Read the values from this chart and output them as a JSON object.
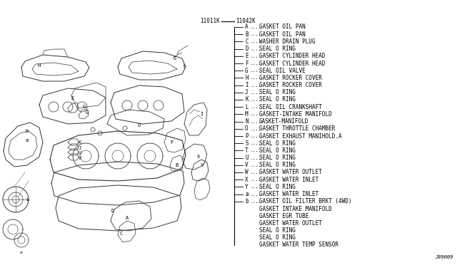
{
  "bg_color": "#ffffff",
  "items": [
    {
      "label": "A",
      "text": "GASKET OIL PAN",
      "has_tick": true
    },
    {
      "label": "B",
      "text": "GASKET OIL PAN",
      "has_tick": true
    },
    {
      "label": "C",
      "text": "WASHER DRAIN PLUG",
      "has_tick": true
    },
    {
      "label": "D",
      "text": "SEAL O RING",
      "has_tick": true
    },
    {
      "label": "E",
      "text": "GASKET CYLINDER HEAD",
      "has_tick": true
    },
    {
      "label": "F",
      "text": "GASKET CYLINDER HEAD",
      "has_tick": true
    },
    {
      "label": "G",
      "text": "SEAL OIL VALVE",
      "has_tick": true
    },
    {
      "label": "H",
      "text": "GASKET ROCKER COVER",
      "has_tick": true
    },
    {
      "label": "I",
      "text": "GASKET ROCKER COVER",
      "has_tick": true
    },
    {
      "label": "J",
      "text": "SEAL O RING",
      "has_tick": true
    },
    {
      "label": "K",
      "text": "SEAL O RING",
      "has_tick": true
    },
    {
      "label": "L",
      "text": "SEAL OIL CRANKSHAFT",
      "has_tick": true
    },
    {
      "label": "M",
      "text": "GASKET-INTAKE MANIFOLD",
      "has_tick": true
    },
    {
      "label": "N",
      "text": "GASKET-MANIFOLD",
      "has_tick": true
    },
    {
      "label": "O",
      "text": "GASKET THROTTLE CHAMBER",
      "has_tick": true
    },
    {
      "label": "P",
      "text": "GASKET EXHAUST MANIHOLD.A",
      "has_tick": true
    },
    {
      "label": "S",
      "text": "SEAL O RING",
      "has_tick": true
    },
    {
      "label": "T",
      "text": "SEAL O RING",
      "has_tick": true
    },
    {
      "label": "U",
      "text": "SEAL O RING",
      "has_tick": true
    },
    {
      "label": "V",
      "text": "SEAL O RING",
      "has_tick": true
    },
    {
      "label": "W",
      "text": "GASKET WATER OUTLET",
      "has_tick": true
    },
    {
      "label": "X",
      "text": "GASKET WATER INLET",
      "has_tick": true
    },
    {
      "label": "Y",
      "text": "SEAL O RING",
      "has_tick": true
    },
    {
      "label": "a",
      "text": "GASKET WATER INLET",
      "has_tick": true
    },
    {
      "label": "b",
      "text": "GASKET OIL FILTER BRKT (4WD)",
      "has_tick": true
    },
    {
      "label": "",
      "text": "GASKET INTAKE MANIFOLD",
      "has_tick": false
    },
    {
      "label": "",
      "text": "GASKET EGR TUBE",
      "has_tick": false
    },
    {
      "label": "",
      "text": "GASKET WATER OUTLET",
      "has_tick": false
    },
    {
      "label": "",
      "text": "SEAL O RING",
      "has_tick": false
    },
    {
      "label": "",
      "text": "SEAL O RING",
      "has_tick": false
    },
    {
      "label": "",
      "text": "GASKET WATER TEMP SENSOR",
      "has_tick": false
    }
  ],
  "footer": "J09009",
  "code_left": "11011K",
  "code_right": "11042K",
  "font_size": 5.5,
  "lc": "#333333"
}
